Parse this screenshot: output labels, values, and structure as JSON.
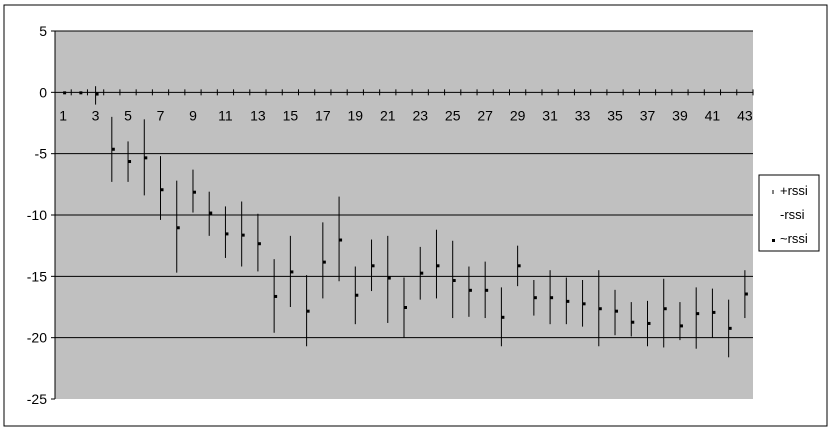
{
  "chart_data": {
    "type": "stock-hlc",
    "title": "",
    "xlabel": "",
    "ylabel": "",
    "ylim": [
      -25,
      5
    ],
    "y_ticks": [
      "5",
      "0",
      "-5",
      "-10",
      "-15",
      "-20",
      "-25"
    ],
    "x_tick_labels": [
      "1",
      "3",
      "5",
      "7",
      "9",
      "11",
      "13",
      "15",
      "17",
      "19",
      "21",
      "23",
      "25",
      "27",
      "29",
      "31",
      "33",
      "35",
      "37",
      "39",
      "41",
      "43"
    ],
    "x": [
      1,
      2,
      3,
      4,
      5,
      6,
      7,
      8,
      9,
      10,
      11,
      12,
      13,
      14,
      15,
      16,
      17,
      18,
      19,
      20,
      21,
      22,
      23,
      24,
      25,
      26,
      27,
      28,
      29,
      30,
      31,
      32,
      33,
      34,
      35,
      36,
      37,
      38,
      39,
      40,
      41,
      42,
      43
    ],
    "series": [
      {
        "name": "+rssi",
        "values": [
          0,
          0,
          0.5,
          -2.0,
          -4.0,
          -2.2,
          -5.2,
          -7.2,
          -6.3,
          -8.1,
          -9.3,
          -8.9,
          -9.9,
          -13.6,
          -11.7,
          -14.9,
          -10.6,
          -8.5,
          -14.2,
          -12.0,
          -11.7,
          -15.1,
          -12.6,
          -11.2,
          -12.1,
          -14.2,
          -13.8,
          -15.9,
          -12.5,
          -15.3,
          -14.5,
          -15.1,
          -15.3,
          -14.5,
          -16.1,
          -17.1,
          -17.0,
          -15.2,
          -17.1,
          -15.9,
          -16.0,
          -16.9,
          -14.5
        ]
      },
      {
        "name": "-rssi",
        "values": [
          0,
          0,
          -1.0,
          -7.3,
          -7.3,
          -8.4,
          -10.4,
          -14.7,
          -9.8,
          -11.7,
          -13.5,
          -14.2,
          -14.6,
          -19.6,
          -17.5,
          -20.7,
          -16.8,
          -15.4,
          -18.9,
          -16.2,
          -18.8,
          -20.0,
          -16.9,
          -16.8,
          -18.4,
          -18.3,
          -18.4,
          -20.7,
          -15.8,
          -18.2,
          -18.9,
          -18.9,
          -19.1,
          -20.7,
          -19.8,
          -19.9,
          -20.7,
          -20.8,
          -20.2,
          -20.9,
          -20.0,
          -21.6,
          -18.4
        ]
      },
      {
        "name": "~rssi",
        "values": [
          0,
          0,
          -0.1,
          -4.6,
          -5.6,
          -5.3,
          -7.9,
          -11.0,
          -8.1,
          -9.8,
          -11.5,
          -11.6,
          -12.3,
          -16.6,
          -14.6,
          -17.8,
          -13.8,
          -12.0,
          -16.5,
          -14.1,
          -15.1,
          -17.5,
          -14.7,
          -14.1,
          -15.3,
          -16.1,
          -16.1,
          -18.3,
          -14.1,
          -16.7,
          -16.7,
          -17.0,
          -17.2,
          -17.6,
          -17.8,
          -18.7,
          -18.8,
          -17.6,
          -19.0,
          -18.0,
          -17.9,
          -19.2,
          -16.4
        ]
      }
    ],
    "grid": true,
    "plot_background": "#c0c0c0",
    "bar_color": "#000000",
    "legend": {
      "placement": "right",
      "entries": [
        "+rssi",
        "-rssi",
        "~rssi"
      ]
    }
  }
}
